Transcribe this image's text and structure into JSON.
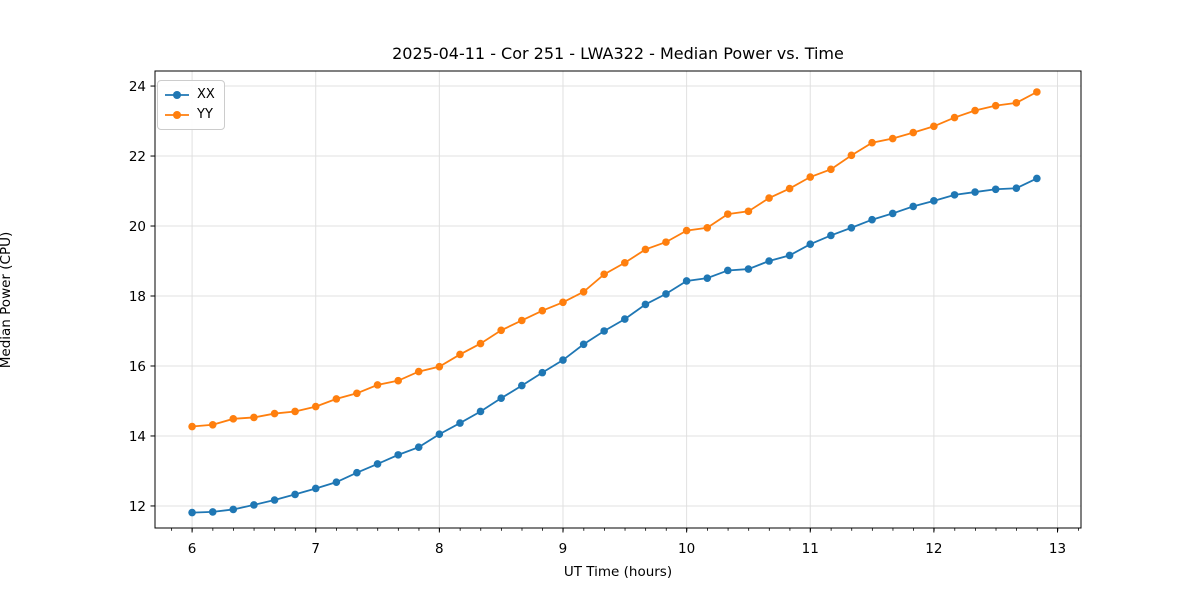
{
  "chart_data": {
    "type": "line",
    "title": "2025-04-11 - Cor 251 - LWA322 - Median Power vs. Time",
    "xlabel": "UT Time (hours)",
    "ylabel": "Median Power (CPU)",
    "xlim": [
      5.7,
      13.19
    ],
    "ylim": [
      11.37,
      24.43
    ],
    "x_ticks": [
      6,
      7,
      8,
      9,
      10,
      11,
      12,
      13
    ],
    "y_ticks": [
      12,
      14,
      16,
      18,
      20,
      22,
      24
    ],
    "x_minor_tick_step": 0.1667,
    "grid": "major",
    "grid_color": "#e0e0e0",
    "legend_position": "upper left",
    "x": [
      6.0,
      6.167,
      6.333,
      6.5,
      6.667,
      6.833,
      7.0,
      7.167,
      7.333,
      7.5,
      7.667,
      7.833,
      8.0,
      8.167,
      8.333,
      8.5,
      8.667,
      8.833,
      9.0,
      9.167,
      9.333,
      9.5,
      9.667,
      9.833,
      10.0,
      10.167,
      10.333,
      10.5,
      10.667,
      10.833,
      11.0,
      11.167,
      11.333,
      11.5,
      11.667,
      11.833,
      12.0,
      12.167,
      12.333,
      12.5,
      12.667,
      12.833
    ],
    "series": [
      {
        "name": "XX",
        "color": "#1f77b4",
        "values": [
          11.81,
          11.83,
          11.9,
          12.03,
          12.17,
          12.33,
          12.5,
          12.68,
          12.95,
          13.2,
          13.46,
          13.68,
          14.05,
          14.37,
          14.7,
          15.08,
          15.44,
          15.81,
          16.17,
          16.62,
          17.0,
          17.34,
          17.76,
          18.06,
          18.43,
          18.51,
          18.73,
          18.77,
          19.0,
          19.16,
          19.48,
          19.73,
          19.95,
          20.18,
          20.36,
          20.56,
          20.72,
          20.89,
          20.97,
          21.05,
          21.08,
          21.36
        ]
      },
      {
        "name": "YY",
        "color": "#ff7f0e",
        "values": [
          14.27,
          14.32,
          14.49,
          14.53,
          14.64,
          14.7,
          14.84,
          15.06,
          15.22,
          15.46,
          15.58,
          15.84,
          15.98,
          16.33,
          16.64,
          17.02,
          17.3,
          17.58,
          17.82,
          18.12,
          18.62,
          18.95,
          19.33,
          19.54,
          19.87,
          19.95,
          20.34,
          20.42,
          20.8,
          21.07,
          21.4,
          21.62,
          22.02,
          22.38,
          22.5,
          22.67,
          22.85,
          23.1,
          23.3,
          23.44,
          23.52,
          23.83
        ]
      }
    ]
  }
}
